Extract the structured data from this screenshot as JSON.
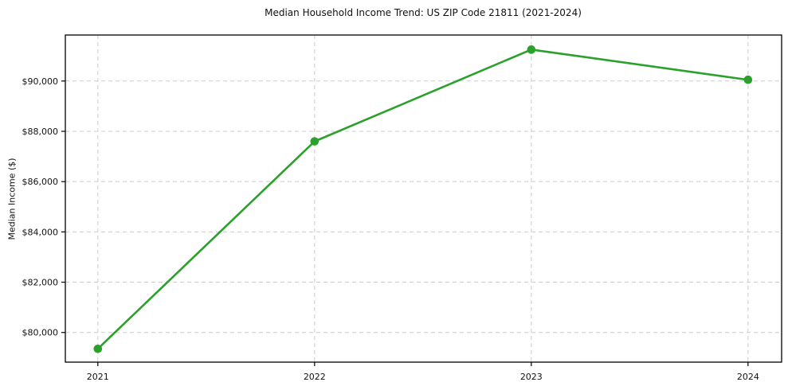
{
  "figure": {
    "title": "Median Household Income Trend: US ZIP Code 21811 (2021-2024)",
    "ylabel": "Median Income ($)"
  },
  "chart_data": {
    "type": "line",
    "title": "Median Household Income Trend: US ZIP Code 21811 (2021-2024)",
    "xlabel": "",
    "ylabel": "Median Income ($)",
    "x": [
      2021,
      2022,
      2023,
      2024
    ],
    "x_tick_labels": [
      "2021",
      "2022",
      "2023",
      "2024"
    ],
    "series": [
      {
        "name": "Median Household Income",
        "values": [
          79350,
          87600,
          91250,
          90050
        ]
      }
    ],
    "xlim": [
      2020.85,
      2024.155
    ],
    "ylim": [
      78820,
      91830
    ],
    "yticks": [
      80000,
      82000,
      84000,
      86000,
      88000,
      90000
    ],
    "ytick_labels": [
      "$80,000",
      "$82,000",
      "$84,000",
      "$86,000",
      "$88,000",
      "$90,000"
    ],
    "grid": "dashed-both-axes",
    "legend_position": "none",
    "colors": {
      "line": "#2ca02c",
      "marker": "#2ca02c",
      "grid": "#cccccc",
      "axes": "#000000",
      "text": "#111111",
      "background": "#ffffff"
    }
  }
}
